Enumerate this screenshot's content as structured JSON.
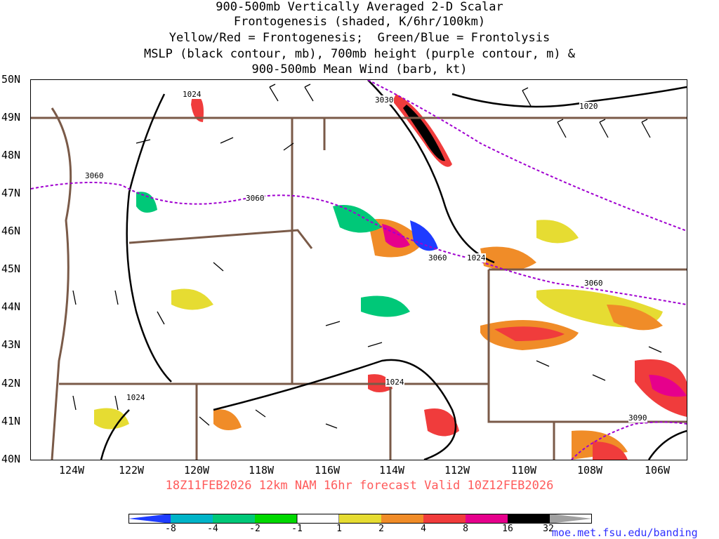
{
  "title": {
    "line1": "900-500mb Vertically Averaged 2-D Scalar",
    "line2": "Frontogenesis (shaded, K/6hr/100km)",
    "line3": "Yellow/Red = Frontogenesis;  Green/Blue = Frontolysis",
    "line4": "MSLP (black contour, mb), 700mb height (purple contour, m) &",
    "line5": "900-500mb Mean Wind (barb, kt)"
  },
  "lat_labels": [
    "50N",
    "49N",
    "48N",
    "47N",
    "46N",
    "45N",
    "44N",
    "43N",
    "42N",
    "41N",
    "40N"
  ],
  "lon_labels": [
    "124W",
    "122W",
    "120W",
    "118W",
    "116W",
    "114W",
    "112W",
    "110W",
    "108W",
    "106W"
  ],
  "contour_labels": {
    "mslp": [
      "1024",
      "1024",
      "1024",
      "1024",
      "1020"
    ],
    "height": [
      "3030",
      "3060",
      "3060",
      "3060",
      "3060",
      "3090"
    ]
  },
  "valid_line": "18Z11FEB2026 12km NAM 16hr forecast Valid 10Z12FEB2026",
  "colorbar": {
    "labels": [
      "-8",
      "-4",
      "-2",
      "-1",
      "1",
      "2",
      "4",
      "8",
      "16",
      "32"
    ],
    "colors": [
      "#1e3cff",
      "#00b4c8",
      "#00c878",
      "#00d800",
      "#ffffff",
      "#e6dc32",
      "#f08c28",
      "#f03c3c",
      "#e6008c",
      "#000000",
      "#a0a0a0"
    ]
  },
  "credit": "moe.met.fsu.edu/banding",
  "colors": {
    "state_border": "#7a5a48",
    "mslp_contour": "#000000",
    "height_contour": "#a000d0",
    "valid_text": "#ff5a5a"
  }
}
